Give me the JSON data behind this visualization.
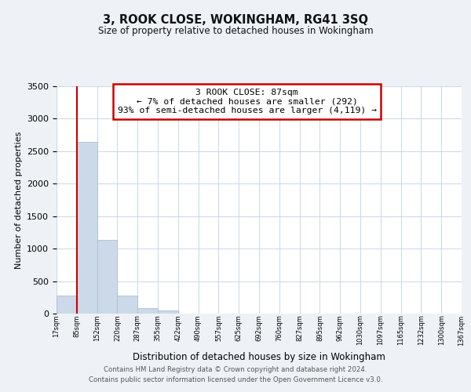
{
  "title": "3, ROOK CLOSE, WOKINGHAM, RG41 3SQ",
  "subtitle": "Size of property relative to detached houses in Wokingham",
  "xlabel": "Distribution of detached houses by size in Wokingham",
  "ylabel": "Number of detached properties",
  "bar_values": [
    280,
    2640,
    1140,
    280,
    85,
    45,
    0,
    0,
    0,
    0,
    0,
    0,
    0,
    0,
    0,
    0,
    0,
    0,
    0,
    0
  ],
  "bin_labels": [
    "17sqm",
    "85sqm",
    "152sqm",
    "220sqm",
    "287sqm",
    "355sqm",
    "422sqm",
    "490sqm",
    "557sqm",
    "625sqm",
    "692sqm",
    "760sqm",
    "827sqm",
    "895sqm",
    "962sqm",
    "1030sqm",
    "1097sqm",
    "1165sqm",
    "1232sqm",
    "1300sqm",
    "1367sqm"
  ],
  "bar_color": "#ccd9e8",
  "bar_edge_color": "#a8bfd4",
  "vline_x": 1,
  "vline_color": "#cc0000",
  "annotation_text": "3 ROOK CLOSE: 87sqm\n← 7% of detached houses are smaller (292)\n93% of semi-detached houses are larger (4,119) →",
  "annotation_box_color": "#ffffff",
  "annotation_box_edge": "#cc0000",
  "ylim": [
    0,
    3500
  ],
  "yticks": [
    0,
    500,
    1000,
    1500,
    2000,
    2500,
    3000,
    3500
  ],
  "footer_line1": "Contains HM Land Registry data © Crown copyright and database right 2024.",
  "footer_line2": "Contains public sector information licensed under the Open Government Licence v3.0.",
  "bg_color": "#eef2f7",
  "plot_bg_color": "#ffffff",
  "grid_color": "#c8d8e8"
}
